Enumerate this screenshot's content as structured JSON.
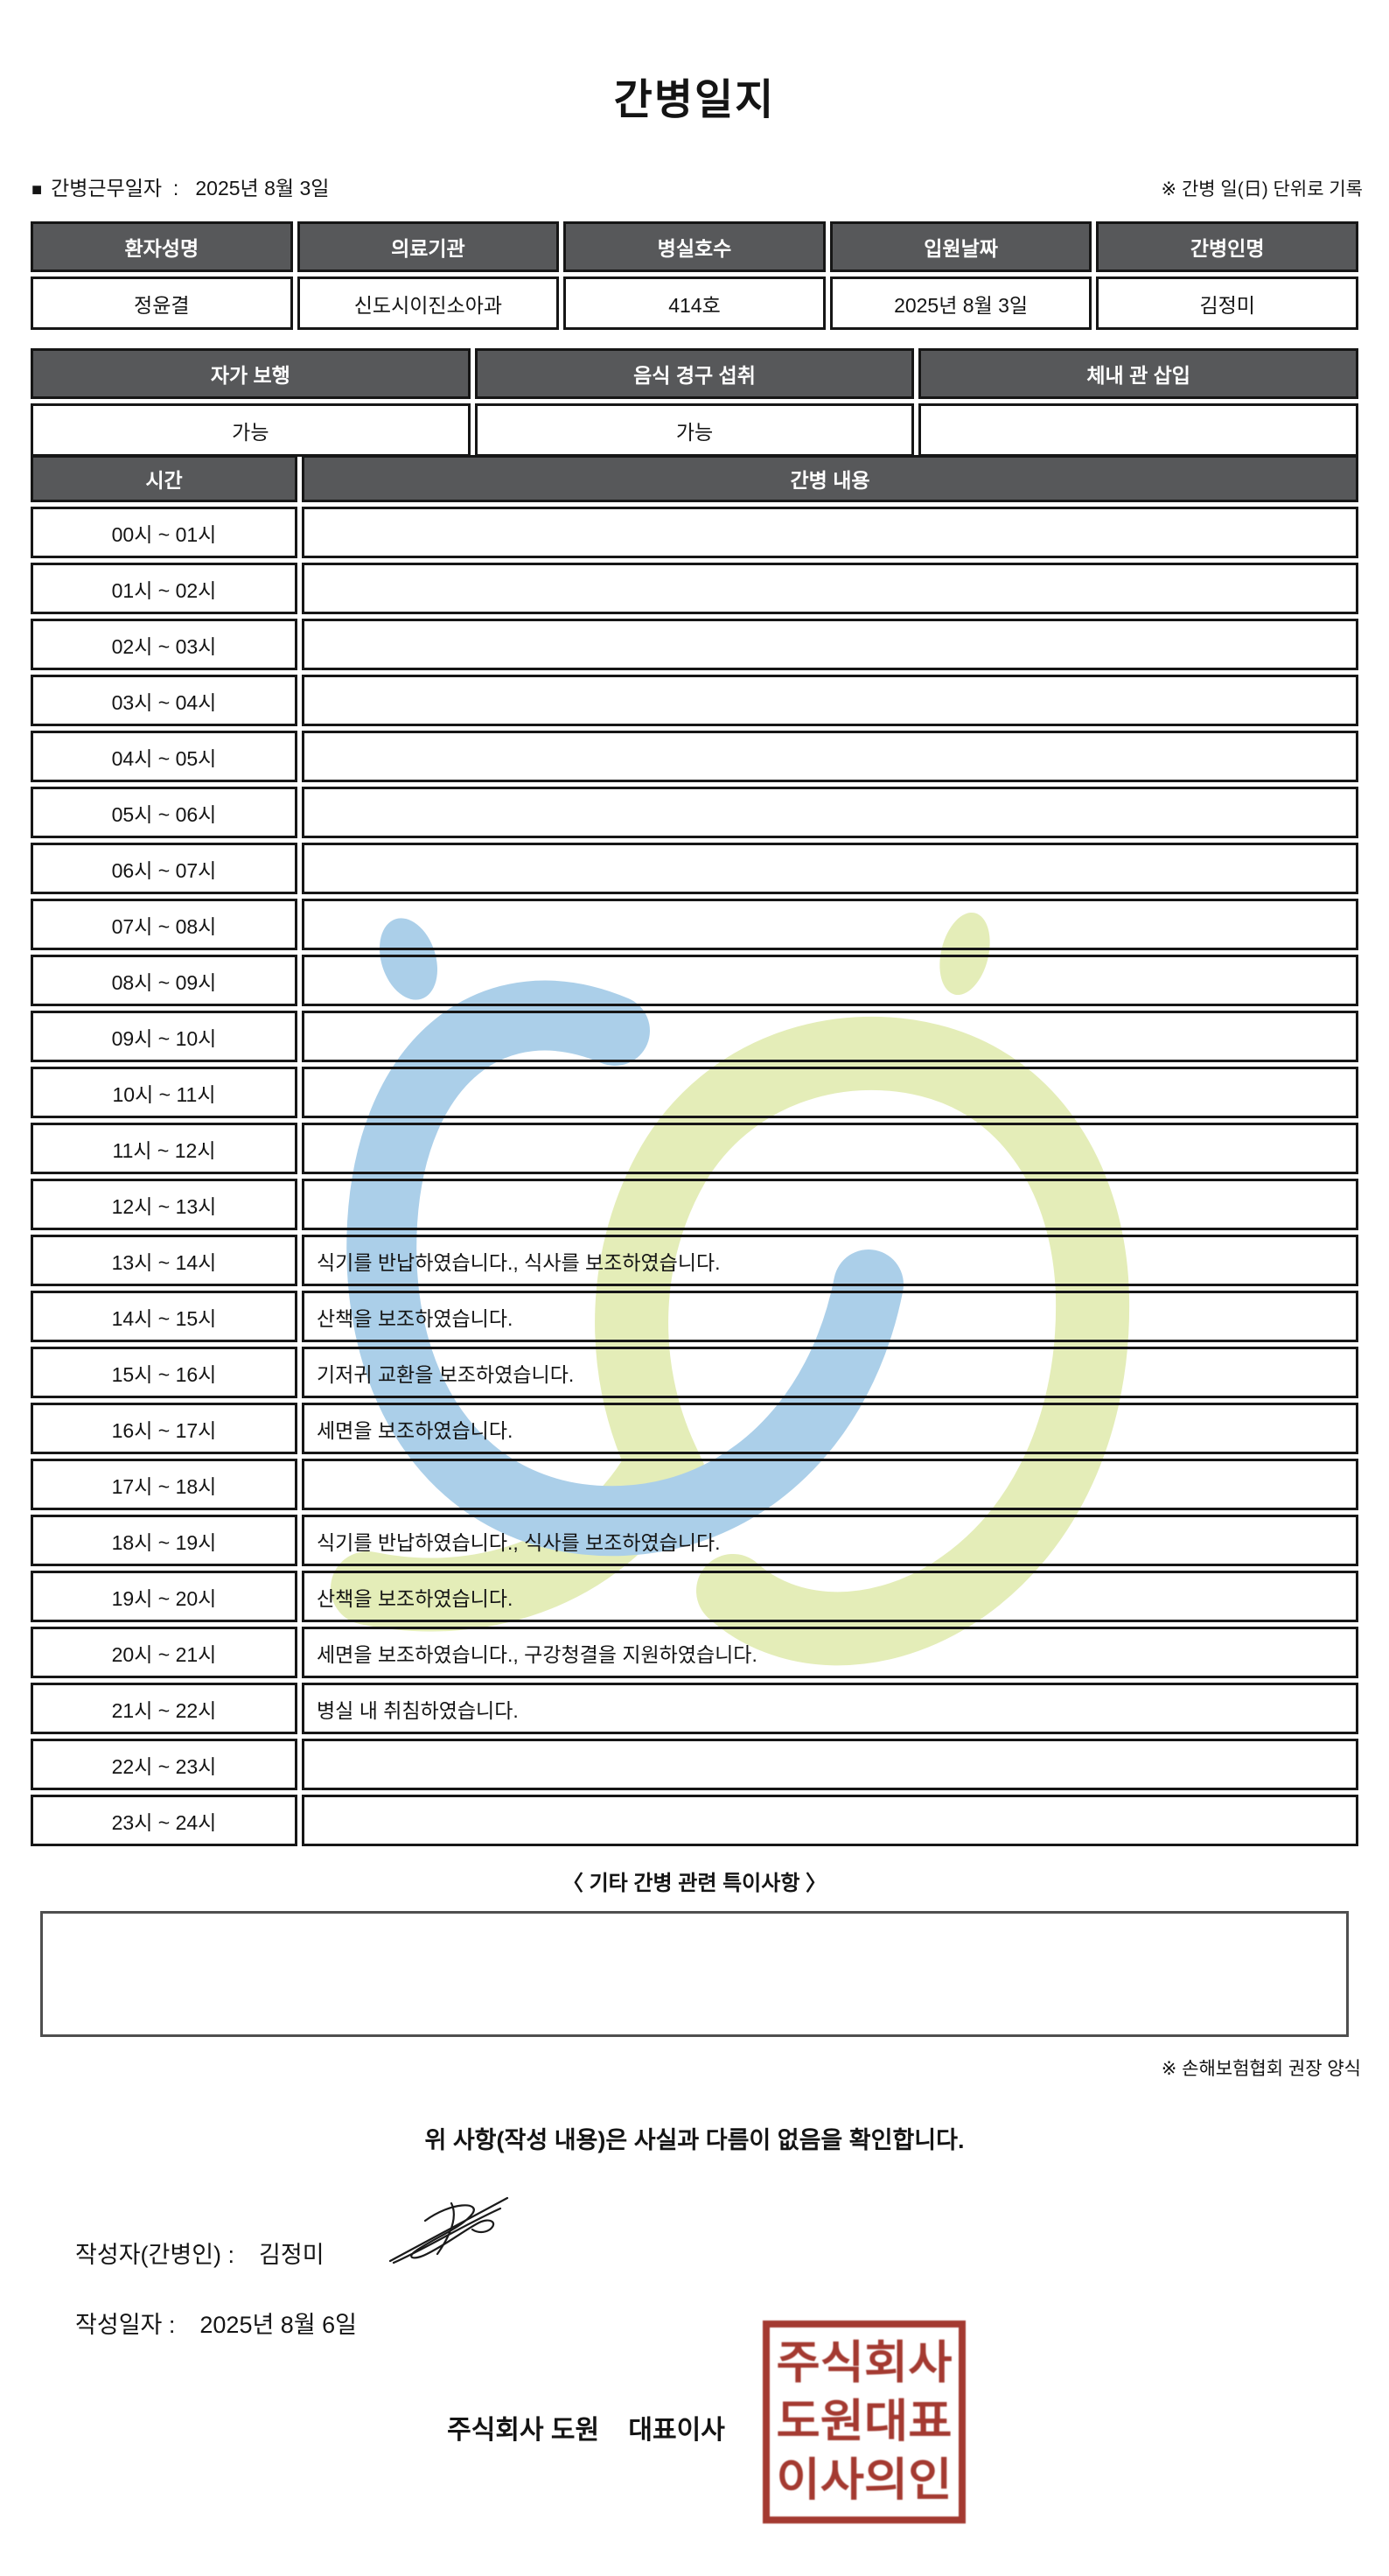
{
  "page": {
    "title": "간병일지"
  },
  "meta": {
    "bullet": "■",
    "work_date_line": "간병근무일자  :   2025년 8월 3일",
    "unit_note": "※ 간병 일(日) 단위로 기록"
  },
  "patient_table": {
    "headers": [
      "환자성명",
      "의료기관",
      "병실호수",
      "입원날짜",
      "간병인명"
    ],
    "values": [
      "정윤결",
      "신도시이진소아과",
      "414호",
      "2025년 8월 3일",
      "김정미"
    ]
  },
  "status_table": {
    "headers": [
      "자가 보행",
      "음식 경구 섭취",
      "체내 관 삽입"
    ],
    "values": [
      "가능",
      "가능",
      ""
    ]
  },
  "care_log": {
    "time_header": "시간",
    "content_header": "간병 내용",
    "rows": [
      {
        "time": "00시 ~ 01시",
        "content": ""
      },
      {
        "time": "01시 ~ 02시",
        "content": ""
      },
      {
        "time": "02시 ~ 03시",
        "content": ""
      },
      {
        "time": "03시 ~ 04시",
        "content": ""
      },
      {
        "time": "04시 ~ 05시",
        "content": ""
      },
      {
        "time": "05시 ~ 06시",
        "content": ""
      },
      {
        "time": "06시 ~ 07시",
        "content": ""
      },
      {
        "time": "07시 ~ 08시",
        "content": ""
      },
      {
        "time": "08시 ~ 09시",
        "content": ""
      },
      {
        "time": "09시 ~ 10시",
        "content": ""
      },
      {
        "time": "10시 ~ 11시",
        "content": ""
      },
      {
        "time": "11시 ~ 12시",
        "content": ""
      },
      {
        "time": "12시 ~ 13시",
        "content": ""
      },
      {
        "time": "13시 ~ 14시",
        "content": "식기를 반납하였습니다., 식사를 보조하였습니다."
      },
      {
        "time": "14시 ~ 15시",
        "content": "산책을 보조하였습니다."
      },
      {
        "time": "15시 ~ 16시",
        "content": "기저귀 교환을 보조하였습니다."
      },
      {
        "time": "16시 ~ 17시",
        "content": "세면을 보조하였습니다."
      },
      {
        "time": "17시 ~ 18시",
        "content": ""
      },
      {
        "time": "18시 ~ 19시",
        "content": "식기를 반납하였습니다., 식사를 보조하였습니다."
      },
      {
        "time": "19시 ~ 20시",
        "content": "산책을 보조하였습니다."
      },
      {
        "time": "20시 ~ 21시",
        "content": "세면을 보조하였습니다., 구강청결을 지원하였습니다."
      },
      {
        "time": "21시 ~ 22시",
        "content": "병실 내 취침하였습니다."
      },
      {
        "time": "22시 ~ 23시",
        "content": ""
      },
      {
        "time": "23시 ~ 24시",
        "content": ""
      }
    ]
  },
  "notes": {
    "heading": "〈 기타 간병 관련 특이사항 〉",
    "content": "",
    "form_note": "※ 손해보험협회 권장 양식"
  },
  "footer": {
    "confirmation": "위 사항(작성 내용)은 사실과 다름이 없음을 확인합니다.",
    "writer_label": "작성자(간병인) :",
    "writer_name": "김정미",
    "date_label": "작성일자 :",
    "date_value": "2025년 8월 6일",
    "company_line": "주식회사 도원    대표이사",
    "stamp_rows": [
      "주식회사",
      "도원대표",
      "이사의인"
    ]
  },
  "colors": {
    "table_header_bg": "#57585a",
    "table_border": "#161616",
    "watermark_blue": "#abcfe9",
    "watermark_green": "#e4edb8",
    "stamp_red": "#a43a31"
  }
}
